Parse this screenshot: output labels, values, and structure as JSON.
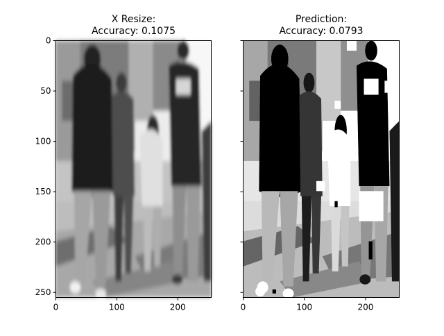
{
  "chart_data": [
    {
      "type": "image",
      "title": "X Resize:\nAccuracy: 0.1075",
      "title_lines": [
        "X Resize:",
        "Accuracy: 0.1075"
      ],
      "accuracy": 0.1075,
      "image": "grayscale photo of a group of people walking away on a street",
      "xlim": [
        0,
        255
      ],
      "ylim": [
        255,
        0
      ],
      "xticks": [
        0,
        100,
        200
      ],
      "yticks": [
        0,
        50,
        100,
        150,
        200,
        250
      ],
      "show_ytick_labels": true
    },
    {
      "type": "image",
      "title": "Prediction:\nAccuracy: 0.0793",
      "title_lines": [
        "Prediction:",
        "Accuracy: 0.0793"
      ],
      "accuracy": 0.0793,
      "image": "higher-contrast grayscale prediction of the same street scene with noisy white/black speckles",
      "xlim": [
        0,
        255
      ],
      "ylim": [
        255,
        0
      ],
      "xticks": [
        0,
        100,
        200
      ],
      "yticks": [
        0,
        50,
        100,
        150,
        200,
        250
      ],
      "show_ytick_labels": false
    }
  ]
}
